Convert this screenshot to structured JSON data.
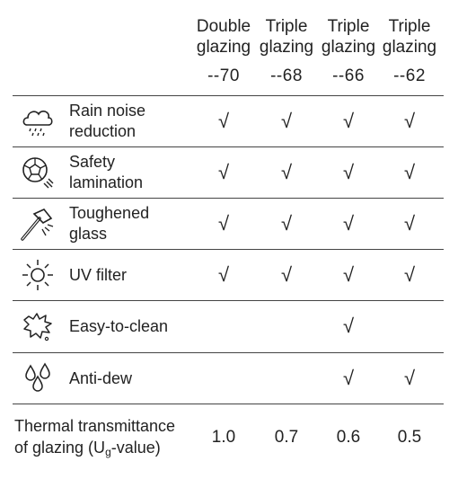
{
  "columns": [
    {
      "line1": "Double",
      "line2": "glazing",
      "code": "--70"
    },
    {
      "line1": "Triple",
      "line2": "glazing",
      "code": "--68"
    },
    {
      "line1": "Triple",
      "line2": "glazing",
      "code": "--66"
    },
    {
      "line1": "Triple",
      "line2": "glazing",
      "code": "--62"
    }
  ],
  "rows": [
    {
      "icon": "rain-cloud-icon",
      "line1": "Rain noise",
      "line2": "reduction",
      "checks": [
        true,
        true,
        true,
        true
      ]
    },
    {
      "icon": "safety-glass-icon",
      "line1": "Safety",
      "line2": "lamination",
      "checks": [
        true,
        true,
        true,
        true
      ]
    },
    {
      "icon": "hammer-icon",
      "line1": "Toughened",
      "line2": "glass",
      "checks": [
        true,
        true,
        true,
        true
      ]
    },
    {
      "icon": "sun-icon",
      "line1": "UV filter",
      "line2": "",
      "checks": [
        true,
        true,
        true,
        true
      ]
    },
    {
      "icon": "dirt-splash-icon",
      "line1": "Easy-to-clean",
      "line2": "",
      "checks": [
        false,
        false,
        true,
        false
      ]
    },
    {
      "icon": "water-drops-icon",
      "line1": "Anti-dew",
      "line2": "",
      "checks": [
        false,
        false,
        true,
        true
      ]
    }
  ],
  "check_symbol": "√",
  "footer": {
    "line1": "Thermal transmittance",
    "line2_pre": "of glazing (U",
    "line2_sub": "g",
    "line2_post": "-value)",
    "values": [
      "1.0",
      "0.7",
      "0.6",
      "0.5"
    ]
  }
}
